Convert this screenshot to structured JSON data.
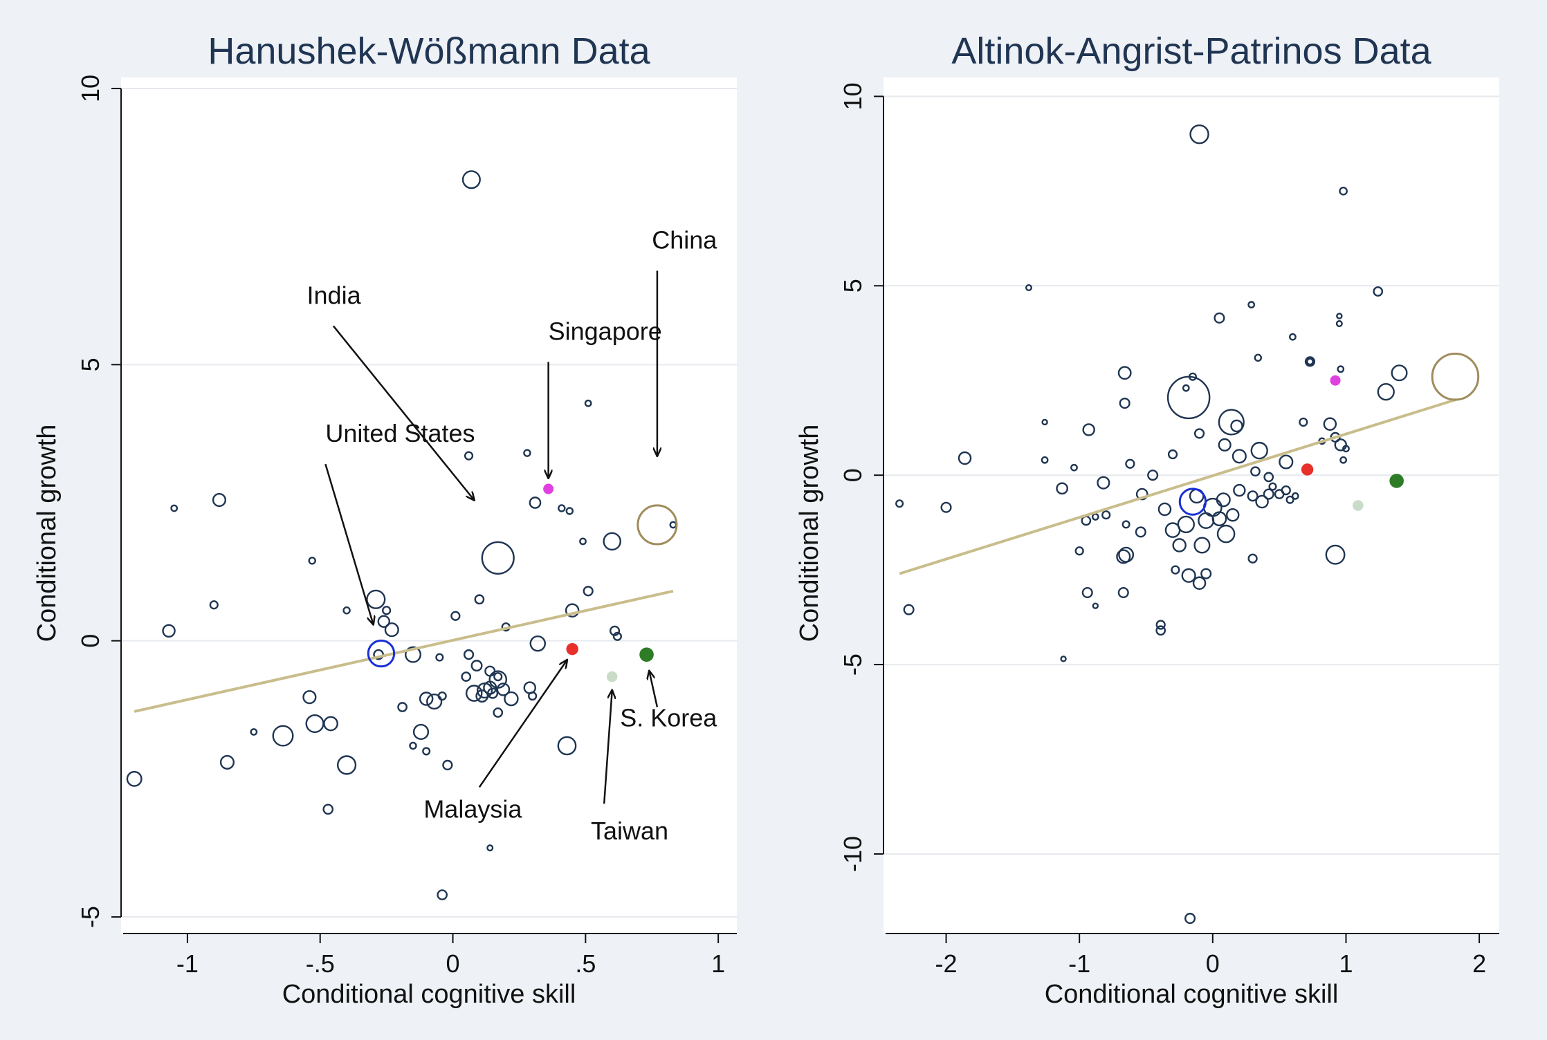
{
  "colors": {
    "background": "#eef1f5",
    "plot_area": "#ffffff",
    "grid": "#e6e9ee",
    "marker_outline": "#1f3552",
    "fit_line": "#c9bd8c",
    "united_states": "#1a2fd6",
    "china": "#a08c5c",
    "singapore": "#e040e0",
    "malaysia": "#e8302a",
    "taiwan": "#c8dcc8",
    "south_korea": "#2e7d26",
    "title": "#1f3552"
  },
  "chart_data": [
    {
      "type": "scatter",
      "title": "Hanushek-Wößmann Data",
      "xlabel": "Conditional cognitive skill",
      "ylabel": "Conditional growth",
      "xlim": [
        -1.25,
        1.07
      ],
      "ylim": [
        -5.3,
        10.2
      ],
      "xticks": [
        -1,
        -0.5,
        0,
        0.5,
        1
      ],
      "xtick_labels": [
        "-1",
        "-.5",
        "0",
        ".5",
        "1"
      ],
      "yticks": [
        -5,
        0,
        5,
        10
      ],
      "ytick_labels": [
        "-5",
        "0",
        "5",
        "10"
      ],
      "grid": true,
      "fit_line": {
        "x": [
          -1.2,
          0.83
        ],
        "y": [
          -1.28,
          0.9
        ]
      },
      "points": [
        {
          "x": 0.07,
          "y": 8.35,
          "size": 5.2
        },
        {
          "x": -1.05,
          "y": 2.4,
          "size": 0.6
        },
        {
          "x": -0.88,
          "y": 2.55,
          "size": 2.7
        },
        {
          "x": -0.9,
          "y": 0.65,
          "size": 1.0
        },
        {
          "x": -1.07,
          "y": 0.18,
          "size": 2.5
        },
        {
          "x": -0.53,
          "y": 1.45,
          "size": 0.7
        },
        {
          "x": -0.29,
          "y": 0.75,
          "size": 5.7
        },
        {
          "x": -0.26,
          "y": 0.35,
          "size": 2.2
        },
        {
          "x": -0.25,
          "y": 0.55,
          "size": 1.0
        },
        {
          "x": -0.23,
          "y": 0.2,
          "size": 3.0
        },
        {
          "x": -0.28,
          "y": -0.25,
          "size": 1.5
        },
        {
          "x": -0.15,
          "y": -0.25,
          "size": 4.0
        },
        {
          "x": -0.4,
          "y": 0.55,
          "size": 0.7
        },
        {
          "x": -0.64,
          "y": -1.72,
          "size": 7.0
        },
        {
          "x": -0.52,
          "y": -1.5,
          "size": 5.2
        },
        {
          "x": -0.54,
          "y": -1.02,
          "size": 2.7
        },
        {
          "x": -0.46,
          "y": -1.5,
          "size": 3.2
        },
        {
          "x": -0.4,
          "y": -2.25,
          "size": 5.7
        },
        {
          "x": -0.85,
          "y": -2.2,
          "size": 3.0
        },
        {
          "x": -0.75,
          "y": -1.65,
          "size": 0.6
        },
        {
          "x": -1.2,
          "y": -2.5,
          "size": 3.6
        },
        {
          "x": -0.47,
          "y": -3.05,
          "size": 1.5
        },
        {
          "x": 0.06,
          "y": 3.35,
          "size": 1.0
        },
        {
          "x": 0.28,
          "y": 3.4,
          "size": 0.7
        },
        {
          "x": 0.31,
          "y": 2.5,
          "size": 2.0
        },
        {
          "x": 0.41,
          "y": 2.4,
          "size": 0.7
        },
        {
          "x": 0.44,
          "y": 2.35,
          "size": 0.7
        },
        {
          "x": 0.51,
          "y": 4.3,
          "size": 0.6
        },
        {
          "x": 0.83,
          "y": 2.1,
          "size": 0.6
        },
        {
          "x": 0.6,
          "y": 1.8,
          "size": 5.0
        },
        {
          "x": 0.49,
          "y": 1.8,
          "size": 0.6
        },
        {
          "x": 0.17,
          "y": 1.5,
          "size": 18.0
        },
        {
          "x": 0.1,
          "y": 0.75,
          "size": 1.3
        },
        {
          "x": 0.51,
          "y": 0.9,
          "size": 1.4
        },
        {
          "x": 0.45,
          "y": 0.55,
          "size": 2.8
        },
        {
          "x": 0.01,
          "y": 0.45,
          "size": 1.2
        },
        {
          "x": 0.2,
          "y": 0.25,
          "size": 1.0
        },
        {
          "x": 0.32,
          "y": -0.05,
          "size": 3.8
        },
        {
          "x": 0.61,
          "y": 0.18,
          "size": 1.4
        },
        {
          "x": 0.62,
          "y": 0.08,
          "size": 1.0
        },
        {
          "x": -0.05,
          "y": -0.3,
          "size": 0.8
        },
        {
          "x": 0.06,
          "y": -0.25,
          "size": 1.4
        },
        {
          "x": 0.09,
          "y": -0.45,
          "size": 1.8
        },
        {
          "x": 0.14,
          "y": -0.55,
          "size": 1.6
        },
        {
          "x": 0.05,
          "y": -0.65,
          "size": 1.3
        },
        {
          "x": 0.17,
          "y": -0.65,
          "size": 1.0
        },
        {
          "x": 0.17,
          "y": -0.7,
          "size": 5.0
        },
        {
          "x": 0.08,
          "y": -0.95,
          "size": 4.2
        },
        {
          "x": 0.12,
          "y": -0.9,
          "size": 3.7
        },
        {
          "x": 0.14,
          "y": -0.85,
          "size": 2.7
        },
        {
          "x": 0.11,
          "y": -1.0,
          "size": 2.3
        },
        {
          "x": 0.19,
          "y": -0.88,
          "size": 2.5
        },
        {
          "x": 0.15,
          "y": -0.95,
          "size": 1.6
        },
        {
          "x": 0.22,
          "y": -1.05,
          "size": 3.1
        },
        {
          "x": 0.29,
          "y": -0.85,
          "size": 2.2
        },
        {
          "x": 0.3,
          "y": -1.0,
          "size": 1.0
        },
        {
          "x": 0.17,
          "y": -1.3,
          "size": 1.3
        },
        {
          "x": -0.1,
          "y": -1.05,
          "size": 2.8
        },
        {
          "x": -0.07,
          "y": -1.1,
          "size": 3.7
        },
        {
          "x": -0.19,
          "y": -1.2,
          "size": 1.3
        },
        {
          "x": -0.12,
          "y": -1.65,
          "size": 3.7
        },
        {
          "x": -0.04,
          "y": -1.0,
          "size": 1.0
        },
        {
          "x": -0.1,
          "y": -2.0,
          "size": 0.8
        },
        {
          "x": -0.15,
          "y": -1.9,
          "size": 0.7
        },
        {
          "x": -0.02,
          "y": -2.25,
          "size": 1.4
        },
        {
          "x": 0.14,
          "y": -3.75,
          "size": 0.5
        },
        {
          "x": -0.04,
          "y": -4.6,
          "size": 1.5
        },
        {
          "x": 0.43,
          "y": -1.9,
          "size": 5.5
        }
      ],
      "highlighted": [
        {
          "label": "United States",
          "x": -0.27,
          "y": -0.23,
          "size": 12.0,
          "color": "#1a2fd6",
          "filled": false
        },
        {
          "label": "China",
          "x": 0.77,
          "y": 2.1,
          "size": 27.0,
          "color": "#a08c5c",
          "filled": false
        },
        {
          "label": "Singapore",
          "x": 0.36,
          "y": 2.75,
          "size": 0.8,
          "color": "#e040e0",
          "filled": true
        },
        {
          "label": "Malaysia",
          "x": 0.45,
          "y": -0.15,
          "size": 2.3,
          "color": "#e8302a",
          "filled": true
        },
        {
          "label": "Taiwan",
          "x": 0.6,
          "y": -0.65,
          "size": 1.8,
          "color": "#c8dcc8",
          "filled": true
        },
        {
          "label": "S. Korea",
          "x": 0.73,
          "y": -0.25,
          "size": 3.3,
          "color": "#2e7d26",
          "filled": true
        }
      ],
      "annotations": [
        {
          "text": "India",
          "text_x": -0.55,
          "text_y": 6.1,
          "arrow_from": [
            -0.45,
            5.7
          ],
          "arrow_to": [
            0.08,
            2.55
          ]
        },
        {
          "text": "China",
          "text_x": 0.75,
          "text_y": 7.1,
          "arrow_from": [
            0.77,
            6.7
          ],
          "arrow_to": [
            0.77,
            3.35
          ]
        },
        {
          "text": "Singapore",
          "text_x": 0.36,
          "text_y": 5.45,
          "arrow_from": [
            0.36,
            5.05
          ],
          "arrow_to": [
            0.36,
            2.95
          ]
        },
        {
          "text": "United States",
          "text_x": -0.48,
          "text_y": 3.6,
          "arrow_from": [
            -0.48,
            3.2
          ],
          "arrow_to": [
            -0.3,
            0.3
          ]
        },
        {
          "text": "Malaysia",
          "text_x": -0.11,
          "text_y": -3.2,
          "arrow_from": [
            0.1,
            -2.65
          ],
          "arrow_to": [
            0.43,
            -0.35
          ]
        },
        {
          "text": "Taiwan",
          "text_x": 0.52,
          "text_y": -3.6,
          "arrow_from": [
            0.57,
            -2.95
          ],
          "arrow_to": [
            0.6,
            -0.9
          ]
        },
        {
          "text": "S. Korea",
          "text_x": 0.63,
          "text_y": -1.55,
          "arrow_from": [
            0.77,
            -1.2
          ],
          "arrow_to": [
            0.74,
            -0.55
          ]
        }
      ]
    },
    {
      "type": "scatter",
      "title": "Altinok-Angrist-Patrinos Data",
      "xlabel": "Conditional cognitive skill",
      "ylabel": "Conditional growth",
      "xlim": [
        -2.47,
        2.15
      ],
      "ylim": [
        -12.1,
        10.5
      ],
      "xticks": [
        -2,
        -1,
        0,
        1,
        2
      ],
      "xtick_labels": [
        "-2",
        "-1",
        "0",
        "1",
        "2"
      ],
      "yticks": [
        -10,
        -5,
        0,
        5,
        10
      ],
      "ytick_labels": [
        "-10",
        "-5",
        "0",
        "5",
        "10"
      ],
      "grid": true,
      "fit_line": {
        "x": [
          -2.35,
          1.83
        ],
        "y": [
          -2.6,
          2.0
        ]
      },
      "points": [
        {
          "x": -0.1,
          "y": 9.0,
          "size": 5.8
        },
        {
          "x": 0.98,
          "y": 7.5,
          "size": 0.9
        },
        {
          "x": -1.38,
          "y": 4.95,
          "size": 0.5
        },
        {
          "x": 1.24,
          "y": 4.85,
          "size": 1.3
        },
        {
          "x": 0.05,
          "y": 4.15,
          "size": 1.6
        },
        {
          "x": 0.29,
          "y": 4.5,
          "size": 0.6
        },
        {
          "x": 0.6,
          "y": 3.65,
          "size": 0.6
        },
        {
          "x": 0.95,
          "y": 4.2,
          "size": 0.4
        },
        {
          "x": 0.95,
          "y": 4.0,
          "size": 0.5
        },
        {
          "x": -0.18,
          "y": 2.05,
          "size": 31.0
        },
        {
          "x": 0.14,
          "y": 1.4,
          "size": 11.0
        },
        {
          "x": 0.18,
          "y": 1.3,
          "size": 2.2
        },
        {
          "x": -0.66,
          "y": 2.7,
          "size": 2.6
        },
        {
          "x": -0.15,
          "y": 2.6,
          "size": 0.8
        },
        {
          "x": -0.2,
          "y": 2.3,
          "size": 0.6
        },
        {
          "x": 0.34,
          "y": 3.1,
          "size": 0.7
        },
        {
          "x": 0.73,
          "y": 3.0,
          "size": 1.4
        },
        {
          "x": 0.73,
          "y": 3.0,
          "size": 0.6
        },
        {
          "x": 0.96,
          "y": 2.8,
          "size": 0.6
        },
        {
          "x": 1.3,
          "y": 2.2,
          "size": 4.5
        },
        {
          "x": 1.4,
          "y": 2.7,
          "size": 4.0
        },
        {
          "x": -0.66,
          "y": 1.9,
          "size": 1.6
        },
        {
          "x": -1.26,
          "y": 1.4,
          "size": 0.4
        },
        {
          "x": -0.93,
          "y": 1.2,
          "size": 2.2
        },
        {
          "x": -1.86,
          "y": 0.45,
          "size": 2.5
        },
        {
          "x": -1.26,
          "y": 0.4,
          "size": 0.6
        },
        {
          "x": -0.1,
          "y": 1.1,
          "size": 1.4
        },
        {
          "x": 0.09,
          "y": 0.8,
          "size": 2.4
        },
        {
          "x": 0.2,
          "y": 0.5,
          "size": 3.0
        },
        {
          "x": 0.35,
          "y": 0.65,
          "size": 4.5
        },
        {
          "x": 0.55,
          "y": 0.35,
          "size": 3.0
        },
        {
          "x": 0.68,
          "y": 1.4,
          "size": 1.0
        },
        {
          "x": 0.82,
          "y": 0.9,
          "size": 0.6
        },
        {
          "x": 0.88,
          "y": 1.35,
          "size": 2.5
        },
        {
          "x": 0.92,
          "y": 1.0,
          "size": 1.4
        },
        {
          "x": 0.96,
          "y": 0.8,
          "size": 2.2
        },
        {
          "x": 0.98,
          "y": 0.4,
          "size": 0.6
        },
        {
          "x": 1.0,
          "y": 0.7,
          "size": 0.6
        },
        {
          "x": -2.35,
          "y": -0.75,
          "size": 0.8
        },
        {
          "x": -2.0,
          "y": -0.85,
          "size": 1.6
        },
        {
          "x": -2.28,
          "y": -3.55,
          "size": 1.6
        },
        {
          "x": -1.13,
          "y": -0.35,
          "size": 2.0
        },
        {
          "x": -1.04,
          "y": 0.2,
          "size": 0.6
        },
        {
          "x": -0.82,
          "y": -0.2,
          "size": 2.4
        },
        {
          "x": -0.62,
          "y": 0.3,
          "size": 1.2
        },
        {
          "x": -0.45,
          "y": 0.0,
          "size": 1.6
        },
        {
          "x": -0.3,
          "y": 0.55,
          "size": 1.2
        },
        {
          "x": -0.53,
          "y": -0.5,
          "size": 2.0
        },
        {
          "x": -0.36,
          "y": -0.9,
          "size": 2.5
        },
        {
          "x": -0.8,
          "y": -1.05,
          "size": 1.0
        },
        {
          "x": -0.88,
          "y": -1.1,
          "size": 0.6
        },
        {
          "x": -0.95,
          "y": -1.2,
          "size": 1.3
        },
        {
          "x": -0.65,
          "y": -1.3,
          "size": 0.8
        },
        {
          "x": -0.54,
          "y": -1.5,
          "size": 1.6
        },
        {
          "x": -0.3,
          "y": -1.45,
          "size": 3.5
        },
        {
          "x": -0.2,
          "y": -1.3,
          "size": 4.5
        },
        {
          "x": -0.05,
          "y": -1.2,
          "size": 4.0
        },
        {
          "x": 0.05,
          "y": -1.15,
          "size": 3.2
        },
        {
          "x": 0.15,
          "y": -1.05,
          "size": 2.5
        },
        {
          "x": 0.0,
          "y": -0.85,
          "size": 5.5
        },
        {
          "x": 0.08,
          "y": -0.65,
          "size": 3.0
        },
        {
          "x": -0.12,
          "y": -0.55,
          "size": 3.2
        },
        {
          "x": 0.2,
          "y": -0.4,
          "size": 2.2
        },
        {
          "x": 0.3,
          "y": -0.55,
          "size": 1.6
        },
        {
          "x": 0.37,
          "y": -0.7,
          "size": 2.5
        },
        {
          "x": 0.42,
          "y": -0.5,
          "size": 1.6
        },
        {
          "x": 0.5,
          "y": -0.5,
          "size": 1.3
        },
        {
          "x": 0.55,
          "y": -0.4,
          "size": 1.2
        },
        {
          "x": 0.45,
          "y": -0.3,
          "size": 0.8
        },
        {
          "x": 0.58,
          "y": -0.65,
          "size": 0.8
        },
        {
          "x": 0.62,
          "y": -0.55,
          "size": 0.6
        },
        {
          "x": 0.32,
          "y": 0.1,
          "size": 1.3
        },
        {
          "x": 0.42,
          "y": -0.05,
          "size": 1.3
        },
        {
          "x": 0.1,
          "y": -1.55,
          "size": 5.0
        },
        {
          "x": -0.08,
          "y": -1.85,
          "size": 4.0
        },
        {
          "x": -0.25,
          "y": -1.85,
          "size": 2.8
        },
        {
          "x": -0.65,
          "y": -2.1,
          "size": 3.6
        },
        {
          "x": -0.67,
          "y": -2.15,
          "size": 3.0
        },
        {
          "x": -1.0,
          "y": -2.0,
          "size": 1.0
        },
        {
          "x": -0.28,
          "y": -2.5,
          "size": 1.0
        },
        {
          "x": 0.3,
          "y": -2.2,
          "size": 1.2
        },
        {
          "x": -0.18,
          "y": -2.65,
          "size": 3.0
        },
        {
          "x": -0.05,
          "y": -2.6,
          "size": 1.6
        },
        {
          "x": -0.1,
          "y": -2.85,
          "size": 2.5
        },
        {
          "x": -0.67,
          "y": -3.1,
          "size": 1.6
        },
        {
          "x": -0.94,
          "y": -3.1,
          "size": 1.6
        },
        {
          "x": -0.88,
          "y": -3.45,
          "size": 0.4
        },
        {
          "x": -0.39,
          "y": -3.95,
          "size": 1.2
        },
        {
          "x": -0.39,
          "y": -4.1,
          "size": 1.3
        },
        {
          "x": -1.12,
          "y": -4.85,
          "size": 0.4
        },
        {
          "x": 0.92,
          "y": -2.1,
          "size": 6.0
        },
        {
          "x": -0.17,
          "y": -11.7,
          "size": 1.6
        }
      ],
      "highlighted": [
        {
          "label": "",
          "x": -0.15,
          "y": -0.7,
          "size": 12.0,
          "color": "#1a2fd6",
          "filled": false
        },
        {
          "label": "",
          "x": 1.82,
          "y": 2.6,
          "size": 38.0,
          "color": "#a08c5c",
          "filled": false
        },
        {
          "label": "",
          "x": 0.92,
          "y": 2.5,
          "size": 0.8,
          "color": "#e040e0",
          "filled": true
        },
        {
          "label": "",
          "x": 0.71,
          "y": 0.15,
          "size": 2.3,
          "color": "#e8302a",
          "filled": true
        },
        {
          "label": "",
          "x": 1.09,
          "y": -0.8,
          "size": 1.8,
          "color": "#c8dcc8",
          "filled": true
        },
        {
          "label": "",
          "x": 1.38,
          "y": -0.15,
          "size": 3.3,
          "color": "#2e7d26",
          "filled": true
        }
      ],
      "annotations": []
    }
  ]
}
